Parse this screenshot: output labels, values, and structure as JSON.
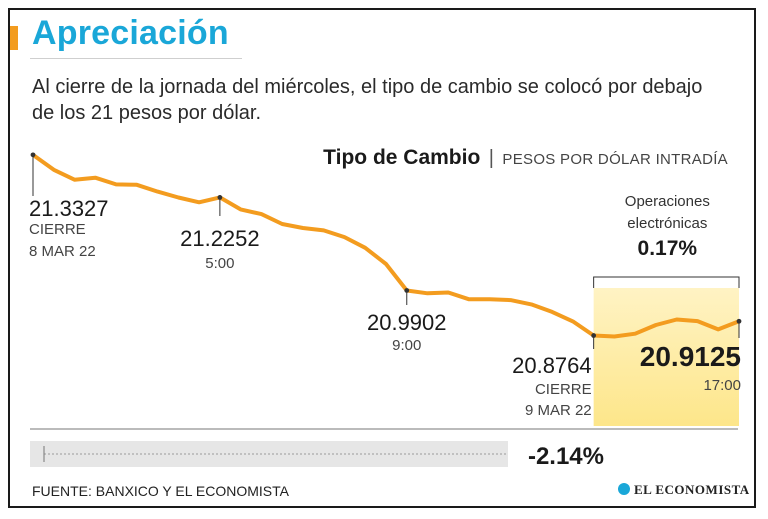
{
  "header": {
    "title": "Apreciación",
    "subtitle": "Al cierre de la jornada del miércoles, el tipo de cambio se colocó por debajo de los 21 pesos por dólar."
  },
  "footer": {
    "source": "FUENTE: BANXICO Y EL ECONOMISTA",
    "brand": "EL ECONOMISTA"
  },
  "colors": {
    "line": "#f39c1f",
    "highlight": "#fde68a",
    "title": "#1aa7d8"
  },
  "chart_data": {
    "type": "line",
    "title": "Tipo de Cambio",
    "unit": "PESOS POR DÓLAR INTRADÍA",
    "ylim": [
      20.85,
      21.35
    ],
    "series": [
      {
        "name": "Tipo de cambio",
        "values": [
          21.3327,
          21.295,
          21.27,
          21.275,
          21.258,
          21.257,
          21.24,
          21.225,
          21.213,
          21.2252,
          21.195,
          21.183,
          21.158,
          21.148,
          21.142,
          21.125,
          21.098,
          21.057,
          20.9902,
          20.983,
          20.985,
          20.968,
          20.968,
          20.966,
          20.955,
          20.936,
          20.912,
          20.8764,
          20.874,
          20.881,
          20.903,
          20.917,
          20.913,
          20.892,
          20.9125
        ]
      }
    ],
    "annotations": [
      {
        "index": 0,
        "value": "21.3327",
        "line1": "CIERRE",
        "line2": "8 MAR 22"
      },
      {
        "index": 9,
        "value": "21.2252",
        "line1": "5:00"
      },
      {
        "index": 18,
        "value": "20.9902",
        "line1": "9:00"
      },
      {
        "index": 27,
        "value": "20.8764",
        "line1": "CIERRE",
        "line2": "9 MAR 22"
      },
      {
        "index": 34,
        "value": "20.9125",
        "line1": "17:00"
      }
    ],
    "electronic_ops": {
      "label_line1": "Operaciones",
      "label_line2": "electrónicas",
      "change": "0.17%",
      "start_index": 27,
      "end_index": 34
    },
    "total_change": "-2.14%"
  }
}
